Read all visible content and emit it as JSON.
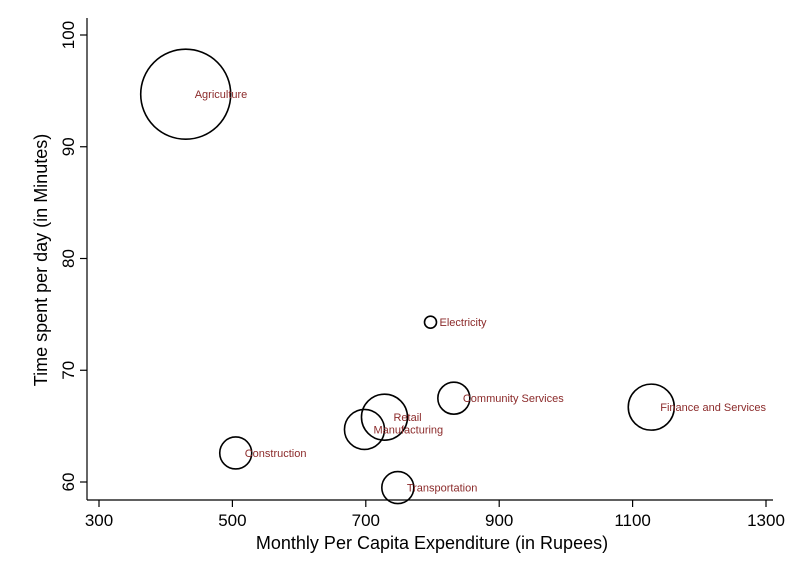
{
  "chart_data": {
    "type": "scatter",
    "xlabel": "Monthly Per Capita Expenditure (in Rupees)",
    "ylabel": "Time spent per day (in Minutes)",
    "xlim": [
      300,
      1300
    ],
    "ylim": [
      60,
      100
    ],
    "xticks": [
      "300",
      "500",
      "700",
      "900",
      "1100",
      "1300"
    ],
    "yticks": [
      "60",
      "70",
      "80",
      "90",
      "100"
    ],
    "grid": false,
    "bubble_note": "bubble size proportional to relative weight (values unlabeled)",
    "points": [
      {
        "label": "Agriculture",
        "x": 430,
        "y": 94.7,
        "size": 45
      },
      {
        "label": "Electricity",
        "x": 797,
        "y": 74.3,
        "size": 6
      },
      {
        "label": "Community Services",
        "x": 832,
        "y": 67.5,
        "size": 16
      },
      {
        "label": "Finance and Services",
        "x": 1128,
        "y": 66.7,
        "size": 23
      },
      {
        "label": "Retail",
        "x": 728,
        "y": 65.8,
        "size": 23
      },
      {
        "label": "Manufacturing",
        "x": 698,
        "y": 64.7,
        "size": 20
      },
      {
        "label": "Construction",
        "x": 505,
        "y": 62.6,
        "size": 16
      },
      {
        "label": "Transportation",
        "x": 748,
        "y": 59.5,
        "size": 16
      }
    ],
    "label_color": "#8b2a2a"
  }
}
